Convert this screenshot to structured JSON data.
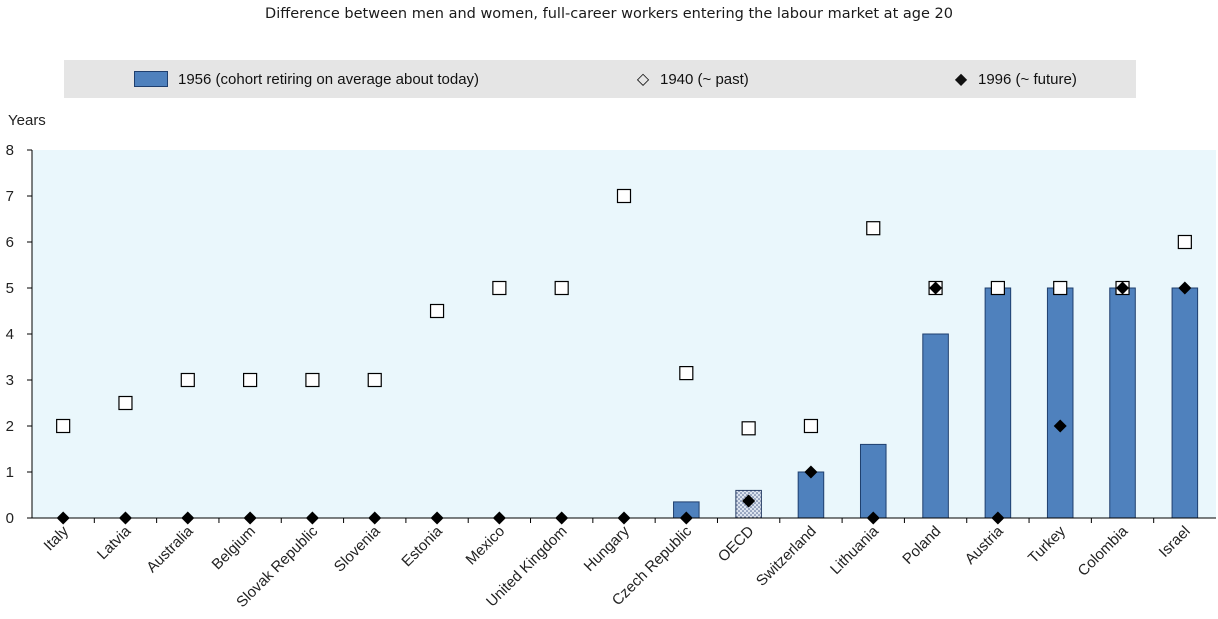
{
  "chart_data": {
    "type": "bar",
    "title": "Difference between men and women, full-career workers entering the labour market at age 20",
    "ylabel": "Years",
    "ylim": [
      0,
      8
    ],
    "yticks": [
      0,
      1,
      2,
      3,
      4,
      5,
      6,
      7,
      8
    ],
    "categories": [
      "Italy",
      "Latvia",
      "Australia",
      "Belgium",
      "Slovak Republic",
      "Slovenia",
      "Estonia",
      "Mexico",
      "United Kingdom",
      "Hungary",
      "Czech Republic",
      "OECD",
      "Switzerland",
      "Lithuania",
      "Poland",
      "Austria",
      "Turkey",
      "Colombia",
      "Israel"
    ],
    "highlight_category": "OECD",
    "series": [
      {
        "name": "1956 (cohort retiring on average about today)",
        "kind": "bar",
        "values": [
          0,
          0,
          0,
          0,
          0,
          0,
          0,
          0,
          0,
          0,
          0.35,
          0.6,
          1.0,
          1.6,
          4.0,
          5.0,
          5.0,
          5.0,
          5.0
        ]
      },
      {
        "name": "1940 (~ past)",
        "kind": "marker-open",
        "values": [
          2.0,
          2.5,
          3.0,
          3.0,
          3.0,
          3.0,
          4.5,
          5.0,
          5.0,
          7.0,
          3.15,
          1.95,
          2.0,
          6.3,
          5.0,
          5.0,
          5.0,
          5.0,
          6.0
        ]
      },
      {
        "name": "1996 (~ future)",
        "kind": "marker-filled",
        "values": [
          0,
          0,
          0,
          0,
          0,
          0,
          0,
          0,
          0,
          0,
          0,
          0.37,
          1.0,
          0,
          5.0,
          0,
          2.0,
          5.0,
          5.0
        ]
      }
    ],
    "grid": false,
    "legend_position": "top",
    "colors": {
      "bar": "#4f81bd",
      "bar_edge": "#1f3f6e",
      "plot_bg": "#eaf7fc",
      "legend_bg": "#e5e5e5"
    }
  },
  "legend": {
    "bar_label": "1956 (cohort retiring on average about today)",
    "open_label": "1940 (~ past)",
    "filled_label": "1996 (~ future)",
    "open_icon": "◇",
    "filled_icon": "◆"
  }
}
